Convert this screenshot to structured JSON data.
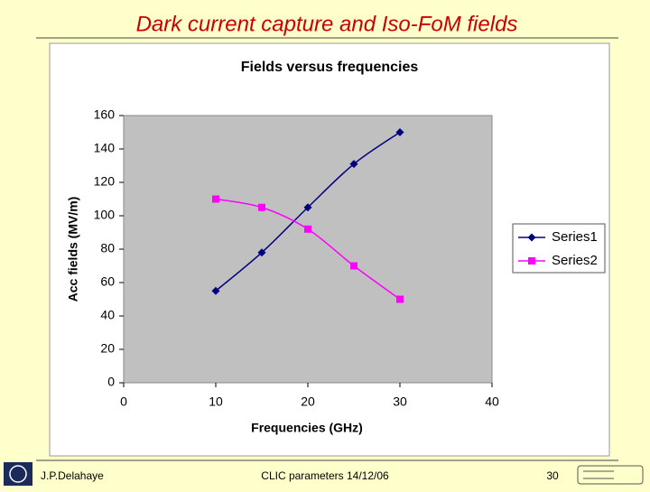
{
  "slide": {
    "title": "Dark current capture and Iso-FoM fields",
    "author": "J.P.Delahaye",
    "footer": "CLIC parameters 14/12/06",
    "page": 30
  },
  "chart_data": {
    "type": "line",
    "title": "Fields versus frequencies",
    "x_label": "Frequencies (GHz)",
    "y_label": "Acc fields (MV/m)",
    "x": [
      10,
      15,
      20,
      25,
      30
    ],
    "series": [
      {
        "name": "Series1",
        "color": "#000080",
        "marker": "diamond",
        "values": [
          55,
          78,
          105,
          131,
          150
        ]
      },
      {
        "name": "Series2",
        "color": "#ff00ff",
        "marker": "square",
        "values": [
          110,
          105,
          92,
          70,
          50
        ]
      }
    ],
    "xlim": [
      0,
      40
    ],
    "xticks": [
      0,
      10,
      20,
      30,
      40
    ],
    "ylim": [
      0,
      160
    ],
    "yticks": [
      0,
      20,
      40,
      60,
      80,
      100,
      120,
      140,
      160
    ],
    "grid": false,
    "smooth": true,
    "legend": "right"
  }
}
